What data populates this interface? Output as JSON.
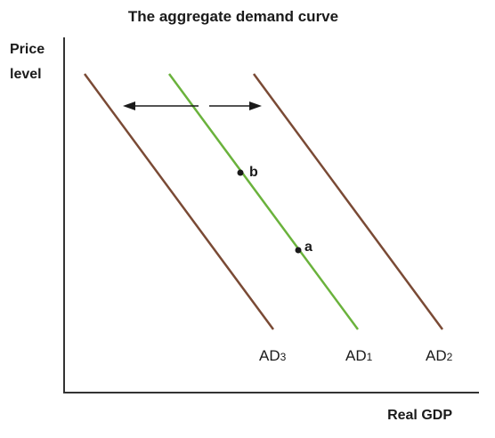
{
  "title": "The aggregate demand curve",
  "axes": {
    "y_label_line1": "Price",
    "y_label_line2": "level",
    "x_label": "Real GDP"
  },
  "curves": [
    {
      "id": "ad3",
      "label_main": "AD",
      "label_sub": "3",
      "color": "#7a4a35"
    },
    {
      "id": "ad1",
      "label_main": "AD",
      "label_sub": "1",
      "color": "#6ab23c"
    },
    {
      "id": "ad2",
      "label_main": "AD",
      "label_sub": "2",
      "color": "#7a4a35"
    }
  ],
  "points": {
    "b": "b",
    "a": "a"
  },
  "arrows": {
    "left": "shift-left",
    "right": "shift-right"
  }
}
